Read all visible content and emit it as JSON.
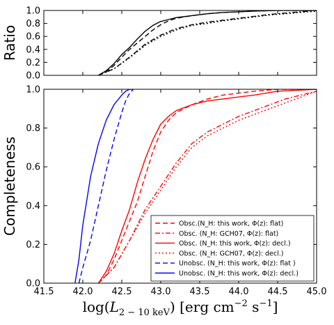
{
  "chart_data": [
    {
      "type": "line",
      "panel": "top",
      "ylabel": "Ratio",
      "xlim": [
        41.5,
        45.0
      ],
      "ylim": [
        0.0,
        1.0
      ],
      "yticks": [
        "0.0",
        "0.2",
        "0.4",
        "0.6",
        "0.8",
        "1.0"
      ],
      "grid": false,
      "series": [
        {
          "style": "solid",
          "color": "#000000",
          "x": [
            42.2,
            42.3,
            42.4,
            42.5,
            42.6,
            42.7,
            42.8,
            42.9,
            43.0,
            43.1,
            43.2,
            43.4,
            43.6,
            43.8,
            44.0,
            44.2,
            44.5,
            45.0
          ],
          "y": [
            0.0,
            0.07,
            0.18,
            0.32,
            0.43,
            0.56,
            0.68,
            0.77,
            0.83,
            0.86,
            0.89,
            0.92,
            0.95,
            0.97,
            0.98,
            0.99,
            1.0,
            1.0
          ]
        },
        {
          "style": "dashed",
          "color": "#000000",
          "x": [
            42.2,
            42.3,
            42.4,
            42.5,
            42.6,
            42.7,
            42.8,
            42.9,
            43.0,
            43.1,
            43.2,
            43.4,
            43.6,
            43.8,
            44.0,
            44.2,
            44.5,
            45.0
          ],
          "y": [
            0.0,
            0.05,
            0.15,
            0.28,
            0.4,
            0.5,
            0.6,
            0.7,
            0.78,
            0.84,
            0.88,
            0.92,
            0.95,
            0.97,
            0.98,
            0.99,
            1.0,
            1.0
          ]
        },
        {
          "style": "dashdot",
          "color": "#000000",
          "x": [
            42.2,
            42.4,
            42.6,
            42.8,
            43.0,
            43.2,
            43.4,
            43.6,
            43.8,
            44.0,
            44.2,
            44.4,
            44.6,
            44.8,
            45.0
          ],
          "y": [
            0.0,
            0.1,
            0.28,
            0.48,
            0.62,
            0.72,
            0.78,
            0.82,
            0.85,
            0.88,
            0.91,
            0.94,
            0.96,
            0.98,
            1.0
          ]
        },
        {
          "style": "dotted",
          "color": "#000000",
          "x": [
            42.2,
            42.4,
            42.6,
            42.8,
            43.0,
            43.2,
            43.4,
            43.6,
            43.8,
            44.0,
            44.2,
            44.4,
            44.6,
            44.8,
            45.0
          ],
          "y": [
            0.0,
            0.1,
            0.27,
            0.46,
            0.6,
            0.7,
            0.77,
            0.8,
            0.84,
            0.87,
            0.9,
            0.93,
            0.95,
            0.97,
            0.99
          ]
        }
      ]
    },
    {
      "type": "line",
      "panel": "bottom",
      "ylabel": "Completeness",
      "xlabel": "log(L_{2-10keV}) [erg cm^{-2} s^{-1}]",
      "xlim": [
        41.5,
        45.0
      ],
      "ylim": [
        0.0,
        1.0
      ],
      "xticks": [
        "41.5",
        "42.0",
        "42.5",
        "43.0",
        "43.5",
        "44.0",
        "44.5",
        "45.0"
      ],
      "yticks": [
        "0.0",
        "0.2",
        "0.4",
        "0.6",
        "0.8",
        "1.0"
      ],
      "grid": false,
      "legend_position": "lower-right",
      "series": [
        {
          "name": "Obsc. (N_H: this work, Φ(z): flat)",
          "style": "dashed",
          "color": "#ff0000",
          "x": [
            42.2,
            42.3,
            42.4,
            42.5,
            42.6,
            42.7,
            42.8,
            42.9,
            43.0,
            43.1,
            43.2,
            43.4,
            43.6,
            43.8,
            44.0,
            44.2,
            44.5,
            45.0
          ],
          "y": [
            0.0,
            0.04,
            0.12,
            0.22,
            0.32,
            0.42,
            0.55,
            0.68,
            0.78,
            0.84,
            0.88,
            0.92,
            0.95,
            0.97,
            0.98,
            0.99,
            1.0,
            1.0
          ]
        },
        {
          "name": "Obsc. (N_H: GCH07, Φ(z): flat)",
          "style": "dashdot",
          "color": "#ff0000",
          "x": [
            42.2,
            42.4,
            42.6,
            42.8,
            43.0,
            43.2,
            43.4,
            43.6,
            43.8,
            44.0,
            44.2,
            44.4,
            44.6,
            44.8,
            45.0
          ],
          "y": [
            0.0,
            0.08,
            0.22,
            0.38,
            0.5,
            0.62,
            0.72,
            0.78,
            0.82,
            0.86,
            0.89,
            0.92,
            0.95,
            0.97,
            0.99
          ]
        },
        {
          "name": "Obsc. (N_H: this work, Φ(z): decl.)",
          "style": "solid",
          "color": "#ff0000",
          "x": [
            42.2,
            42.3,
            42.4,
            42.5,
            42.6,
            42.7,
            42.8,
            42.9,
            43.0,
            43.1,
            43.2,
            43.4,
            43.6,
            43.8,
            44.0,
            44.2,
            44.5,
            45.0
          ],
          "y": [
            0.0,
            0.06,
            0.15,
            0.27,
            0.38,
            0.52,
            0.64,
            0.74,
            0.82,
            0.86,
            0.89,
            0.92,
            0.94,
            0.95,
            0.96,
            0.97,
            0.99,
            1.0
          ]
        },
        {
          "name": "Obsc. (N_H: GCH07, Φ(z): decl.)",
          "style": "dotted",
          "color": "#ff0000",
          "x": [
            42.2,
            42.4,
            42.6,
            42.8,
            43.0,
            43.2,
            43.4,
            43.6,
            43.8,
            44.0,
            44.2,
            44.4,
            44.6,
            44.8,
            45.0
          ],
          "y": [
            0.0,
            0.08,
            0.22,
            0.36,
            0.48,
            0.6,
            0.7,
            0.76,
            0.8,
            0.84,
            0.87,
            0.9,
            0.93,
            0.96,
            0.99
          ]
        },
        {
          "name": "Unobsc. (N_H: this work, Φ(z): flat )",
          "style": "dashed",
          "color": "#0000ff",
          "x": [
            41.95,
            42.0,
            42.1,
            42.2,
            42.3,
            42.4,
            42.5,
            42.55,
            42.6,
            42.65
          ],
          "y": [
            0.0,
            0.08,
            0.22,
            0.4,
            0.58,
            0.74,
            0.88,
            0.94,
            0.98,
            1.0
          ]
        },
        {
          "name": "Unobsc. (N_H: this work, Φ(z): decl.)",
          "style": "solid",
          "color": "#0000ff",
          "x": [
            41.9,
            41.95,
            42.0,
            42.1,
            42.2,
            42.3,
            42.4,
            42.5,
            42.55,
            42.6,
            42.65
          ],
          "y": [
            0.0,
            0.12,
            0.3,
            0.55,
            0.72,
            0.84,
            0.92,
            0.97,
            0.99,
            1.0,
            1.0
          ]
        }
      ],
      "legend": [
        {
          "text": "Obsc.(N_H: this work, Φ(z): flat)"
        },
        {
          "text": "Obsc. (N_H: GCH07, Φ(z): flat)"
        },
        {
          "text": "Obsc. (N_H: this work, Φ(z): decl.)"
        },
        {
          "text": "Obsc. (N_H: GCH07, Φ(z): decl.)"
        },
        {
          "text": "Unobsc. (N_H: this work, Φ(z): flat )"
        },
        {
          "text": "Unobsc. (N_H: this work, Φ(z): decl.)"
        }
      ]
    }
  ]
}
